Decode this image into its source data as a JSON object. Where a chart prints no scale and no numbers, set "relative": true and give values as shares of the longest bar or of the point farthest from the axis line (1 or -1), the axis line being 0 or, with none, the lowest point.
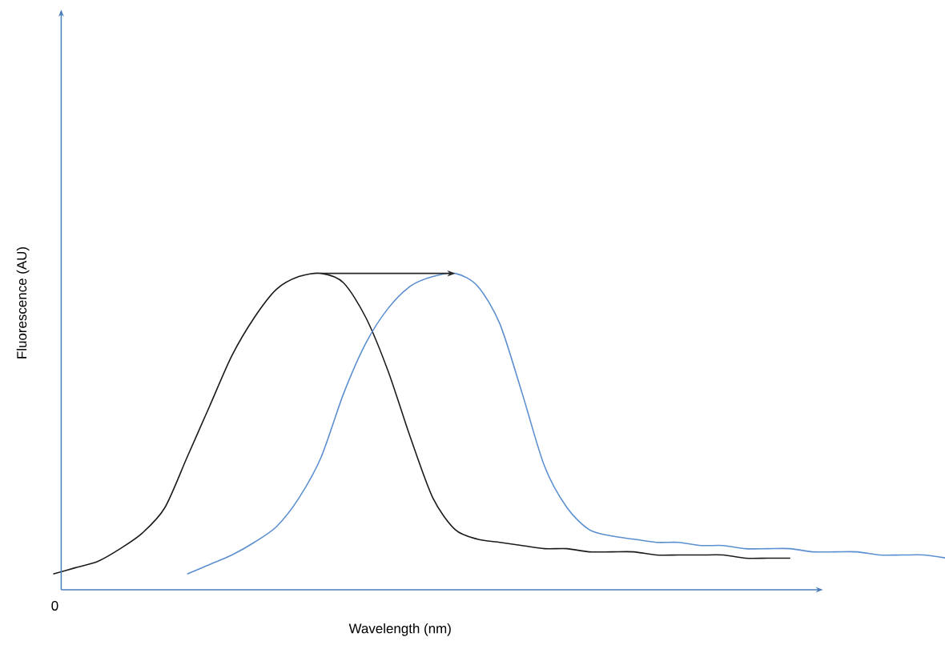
{
  "chart_data": {
    "type": "line",
    "relative": true,
    "xlabel": "Wavelength (nm)",
    "ylabel": "Fluorescence (AU)",
    "annotations": [
      "0"
    ],
    "categories": [
      null,
      null,
      null,
      null,
      null,
      null,
      null,
      null,
      null,
      null,
      null,
      null,
      null,
      null,
      null,
      null,
      null,
      null,
      null,
      null,
      null,
      null,
      null,
      null,
      null,
      null,
      null,
      null,
      null,
      null,
      null,
      null,
      null,
      null,
      null,
      null,
      null,
      null,
      null,
      null,
      null
    ],
    "series": [
      {
        "color": "#1a1a1a",
        "values": [
          0.05,
          0.07,
          0.09,
          0.13,
          0.18,
          0.26,
          0.42,
          0.58,
          0.74,
          0.86,
          0.95,
          0.99,
          1.0,
          0.97,
          0.86,
          0.69,
          0.48,
          0.29,
          0.19,
          0.16,
          0.15,
          0.14,
          0.13,
          0.13,
          0.12,
          0.12,
          0.12,
          0.11,
          0.11,
          0.11,
          0.11,
          0.1,
          0.1,
          0.1,
          null,
          null,
          null,
          null,
          null,
          null,
          null
        ]
      },
      {
        "color": "#5b8fd0",
        "values": [
          null,
          null,
          null,
          null,
          null,
          null,
          0.05,
          0.08,
          0.11,
          0.15,
          0.2,
          0.29,
          0.42,
          0.62,
          0.78,
          0.89,
          0.96,
          0.99,
          1.0,
          0.96,
          0.84,
          0.62,
          0.39,
          0.26,
          0.19,
          0.17,
          0.16,
          0.15,
          0.15,
          0.14,
          0.14,
          0.13,
          0.13,
          0.13,
          0.12,
          0.12,
          0.12,
          0.11,
          0.11,
          0.11,
          0.1
        ]
      }
    ]
  }
}
